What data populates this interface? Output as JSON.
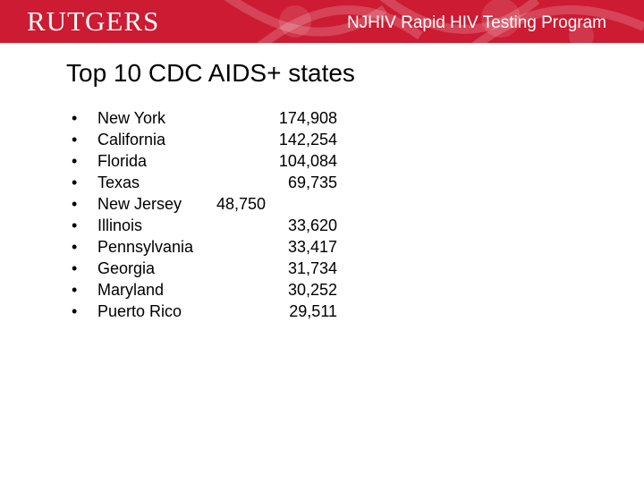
{
  "header": {
    "logo_text": "RUTGERS",
    "program_title": "NJHIV Rapid HIV Testing Program",
    "bg_color": "#cc1b32"
  },
  "slide": {
    "title": "Top 10 CDC AIDS+ states",
    "bullet_char": "•",
    "states": [
      {
        "name": "New York",
        "value": "174,908"
      },
      {
        "name": "California",
        "value": "142,254"
      },
      {
        "name": "Florida",
        "value": "104,084"
      },
      {
        "name": "Texas",
        "value": "69,735"
      },
      {
        "name": "New Jersey",
        "value": "48,750"
      },
      {
        "name": "Illinois",
        "value": "33,620"
      },
      {
        "name": "Pennsylvania",
        "value": "33,417"
      },
      {
        "name": "Georgia",
        "value": "31,734"
      },
      {
        "name": "Maryland",
        "value": "30,252"
      },
      {
        "name": "Puerto Rico",
        "value": "29,511"
      }
    ]
  }
}
